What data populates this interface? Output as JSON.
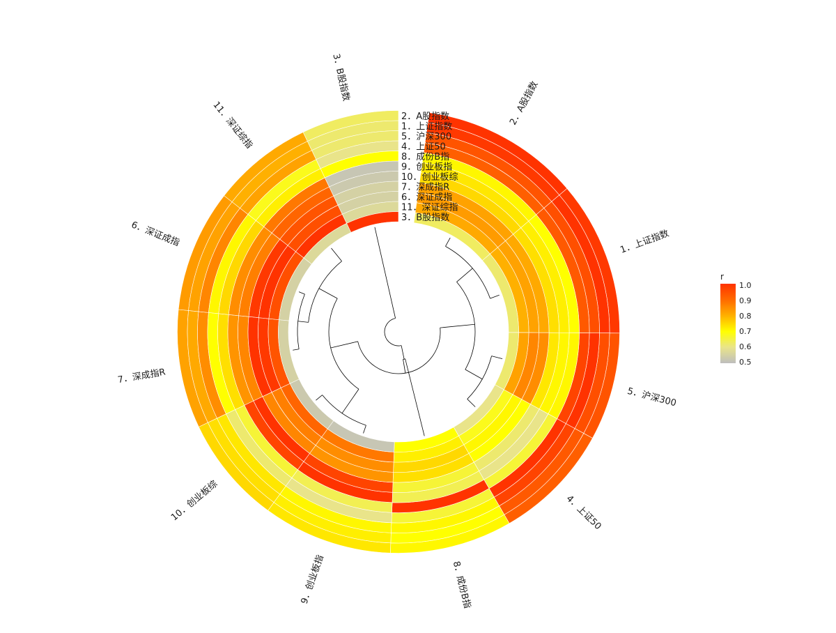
{
  "chart_data": {
    "type": "heatmap",
    "layout": "circular",
    "labels": [
      "1．上证指数",
      "2．A股指数",
      "3．B股指数",
      "4．上证50",
      "5．沪深300",
      "6．深证成指",
      "7．深成指R",
      "8．成份B指",
      "9．创业板指",
      "10．创业板综",
      "11．深证综指"
    ],
    "track_labels": [
      "2．A股指数",
      "1．上证指数",
      "5．沪深300",
      "4．上证50",
      "8．成份B指",
      "9．创业板指",
      "10．创业板综",
      "7．深成指R",
      "6．深证成指",
      "11．深证综指",
      "3．B股指数"
    ],
    "matrix": [
      [
        1.0,
        0.99,
        0.62,
        0.93,
        0.95,
        0.82,
        0.81,
        0.7,
        0.72,
        0.74,
        0.8
      ],
      [
        0.99,
        1.0,
        0.63,
        0.92,
        0.94,
        0.83,
        0.82,
        0.71,
        0.73,
        0.75,
        0.81
      ],
      [
        0.62,
        0.63,
        1.0,
        0.6,
        0.62,
        0.55,
        0.55,
        0.7,
        0.52,
        0.53,
        0.57
      ],
      [
        0.93,
        0.92,
        0.6,
        1.0,
        0.97,
        0.71,
        0.7,
        0.66,
        0.6,
        0.62,
        0.68
      ],
      [
        0.95,
        0.94,
        0.62,
        0.97,
        1.0,
        0.86,
        0.85,
        0.71,
        0.71,
        0.73,
        0.82
      ],
      [
        0.82,
        0.83,
        0.55,
        0.71,
        0.86,
        1.0,
        0.99,
        0.75,
        0.85,
        0.87,
        0.95
      ],
      [
        0.81,
        0.82,
        0.55,
        0.7,
        0.85,
        0.99,
        1.0,
        0.74,
        0.84,
        0.86,
        0.94
      ],
      [
        0.7,
        0.71,
        0.7,
        0.66,
        0.71,
        0.75,
        0.74,
        1.0,
        0.64,
        0.66,
        0.72
      ],
      [
        0.72,
        0.73,
        0.52,
        0.6,
        0.71,
        0.85,
        0.84,
        0.64,
        1.0,
        0.97,
        0.88
      ],
      [
        0.74,
        0.75,
        0.53,
        0.62,
        0.73,
        0.87,
        0.86,
        0.66,
        0.97,
        1.0,
        0.91
      ],
      [
        0.8,
        0.81,
        0.57,
        0.68,
        0.82,
        0.95,
        0.94,
        0.72,
        0.88,
        0.91,
        1.0
      ]
    ],
    "legend": {
      "title": "r",
      "ticks": [
        "1.0",
        "0.9",
        "0.8",
        "0.7",
        "0.6",
        "0.5"
      ],
      "range": [
        0.5,
        1.0
      ]
    },
    "color_scale": [
      "#BEBEBE",
      "#E9E48A",
      "#FFFF00",
      "#FFB000",
      "#FF6A00",
      "#FF3300"
    ]
  }
}
